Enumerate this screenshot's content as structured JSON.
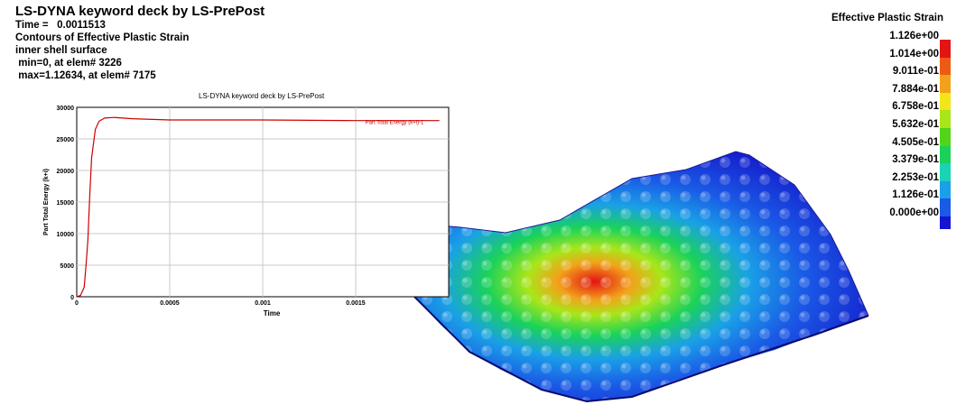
{
  "header": {
    "title": "LS-DYNA keyword deck by LS-PrePost",
    "time_line": "Time =   0.0011513",
    "contours_line": "Contours of Effective Plastic Strain",
    "surface_line": "inner shell surface",
    "min_line": " min=0, at elem# 3226",
    "max_line": " max=1.12634, at elem# 7175"
  },
  "legend": {
    "title": "Effective Plastic Strain",
    "values": [
      "1.126e+00",
      "1.014e+00",
      "9.011e-01",
      "7.884e-01",
      "6.758e-01",
      "5.632e-01",
      "4.505e-01",
      "3.379e-01",
      "2.253e-01",
      "1.126e-01",
      "0.000e+00"
    ],
    "colors": [
      "#e31414",
      "#ee5a14",
      "#f2a21a",
      "#f2e61a",
      "#a8e61a",
      "#52d41a",
      "#1ad25a",
      "#1ad2b4",
      "#1aa0e6",
      "#1a5ae6",
      "#1414d2"
    ]
  },
  "chart_data": {
    "type": "line",
    "title": "LS-DYNA keyword deck by LS-PrePost",
    "xlabel": "Time",
    "ylabel": "Part Total Energy (k+i)",
    "xlim": [
      0,
      0.002
    ],
    "ylim": [
      0,
      30000
    ],
    "xticks": [
      "0",
      "0.0005",
      "0.001",
      "0.0015"
    ],
    "yticks": [
      "0",
      "5000",
      "10000",
      "15000",
      "20000",
      "25000",
      "30000"
    ],
    "grid": true,
    "series": [
      {
        "name": "Part Total Energy (k+i)-1",
        "color": "#cc0000",
        "x": [
          0,
          2e-05,
          4e-05,
          5e-05,
          6e-05,
          7e-05,
          8e-05,
          0.0001,
          0.00012,
          0.00015,
          0.0002,
          0.0003,
          0.0005,
          0.001,
          0.0015,
          0.00195
        ],
        "y": [
          0,
          200,
          1500,
          5000,
          9000,
          16000,
          22000,
          26500,
          27800,
          28300,
          28400,
          28200,
          28000,
          28000,
          27900,
          27900
        ]
      }
    ]
  }
}
